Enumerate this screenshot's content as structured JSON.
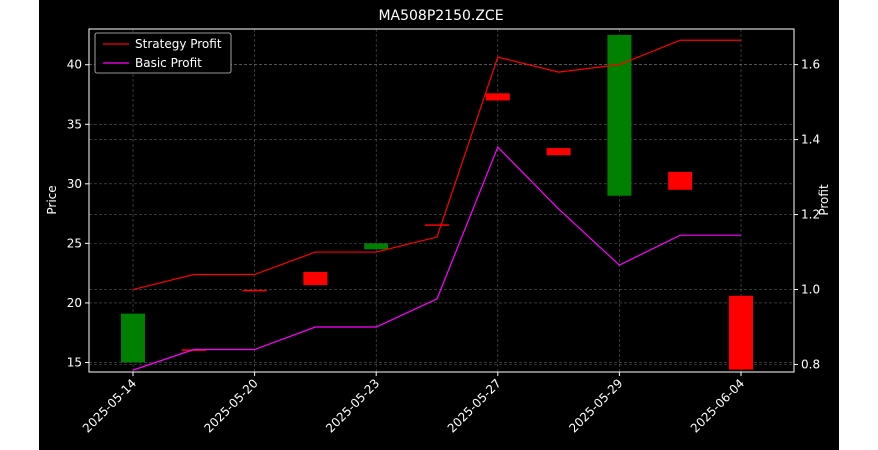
{
  "colors": {
    "background": "#000000",
    "axis": "#ffffff",
    "grid": "#808080",
    "up": "#008000",
    "down": "#ff0000",
    "strategy": "#ff0000",
    "basic": "#ff00ff"
  },
  "chart_data": {
    "type": "candlestick+line",
    "title": "MA508P2150.ZCE",
    "xlabel": "",
    "ylabel": "Price",
    "y2label": "Profit",
    "ylim": [
      14.2,
      43.0
    ],
    "y2lim": [
      0.78,
      1.695
    ],
    "yticks": [
      15,
      20,
      25,
      30,
      35,
      40
    ],
    "y2ticks": [
      0.8,
      1.0,
      1.2,
      1.4,
      1.6
    ],
    "grid": true,
    "legend_position": "top-left",
    "tick_labels": [
      "2025-05-14",
      "2025-05-20",
      "2025-05-23",
      "2025-05-27",
      "2025-05-29",
      "2025-06-04"
    ],
    "tick_indices": [
      0,
      2,
      4,
      6,
      8,
      10
    ],
    "candles": [
      {
        "open": 15.0,
        "close": 19.1
      },
      {
        "open": 16.1,
        "close": 16.0
      },
      {
        "open": 21.1,
        "close": 21.0
      },
      {
        "open": 22.6,
        "close": 21.5
      },
      {
        "open": 24.5,
        "close": 25.0
      },
      {
        "open": 26.6,
        "close": 26.5
      },
      {
        "open": 37.6,
        "close": 37.0
      },
      {
        "open": 33.0,
        "close": 32.4
      },
      {
        "open": 29.0,
        "close": 42.5
      },
      {
        "open": 31.0,
        "close": 29.5
      },
      {
        "open": 20.6,
        "close": 14.4
      }
    ],
    "series": [
      {
        "name": "Strategy Profit",
        "axis": "right",
        "values": [
          1.0,
          1.04,
          1.04,
          1.1,
          1.1,
          1.14,
          1.62,
          1.58,
          1.6,
          1.665,
          1.665
        ]
      },
      {
        "name": "Basic Profit",
        "axis": "right",
        "values": [
          0.785,
          0.84,
          0.84,
          0.9,
          0.9,
          0.975,
          1.38,
          1.215,
          1.065,
          1.145,
          1.145
        ]
      }
    ]
  }
}
